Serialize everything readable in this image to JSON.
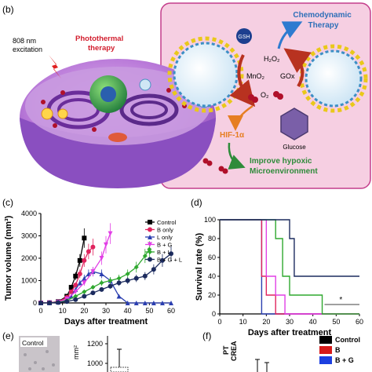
{
  "panel_b": {
    "label": "(b)",
    "laser": "808 nm\nexcitation",
    "photothermal": "Photothermal\ntherapy",
    "chemodynamic": "Chemodynamic\nTherapy",
    "gsh": "GSH",
    "h2o2": "H₂O₂",
    "mno2": "MnO₂",
    "gox": "GOx",
    "o2": "O₂",
    "glucose": "Glucose",
    "hif": "HIF-1α",
    "improve": "Improve hypoxic\nMicroenvironment",
    "colors": {
      "pink_bg": "#f6cfe2",
      "cell": "#a86bd0",
      "red_arrow": "#c0392b",
      "green_text": "#2e8b3a",
      "blue_text": "#2e6fb8",
      "orange_text": "#e67e22"
    }
  },
  "panel_c": {
    "label": "(c)"
  },
  "panel_d": {
    "label": "(d)"
  },
  "panel_e": {
    "label": "(e)",
    "inset_label": "Control",
    "ylabel_fragment": "mm²"
  },
  "panel_f": {
    "label": "(f)",
    "ylabel_fragment": "PT\nCREA",
    "legend": [
      "Control",
      "B",
      "B + G"
    ]
  },
  "chart_data": [
    {
      "type": "line",
      "panel": "c",
      "xlabel": "Days after treatment",
      "ylabel": "Tumor volume (mm³)",
      "xlim": [
        0,
        60
      ],
      "ylim": [
        0,
        4000
      ],
      "xticks": [
        0,
        10,
        20,
        30,
        40,
        50,
        60
      ],
      "yticks": [
        0,
        1000,
        2000,
        3000,
        4000
      ],
      "legend_position": "top-right",
      "series": [
        {
          "name": "Control",
          "color": "#000000",
          "marker": "square",
          "x": [
            0,
            4,
            8,
            12,
            14,
            16,
            18,
            20
          ],
          "y": [
            0,
            10,
            60,
            300,
            700,
            1200,
            1900,
            2900
          ]
        },
        {
          "name": "B only",
          "color": "#e0245e",
          "marker": "circle",
          "x": [
            0,
            4,
            8,
            12,
            14,
            16,
            18,
            20,
            22,
            24
          ],
          "y": [
            0,
            10,
            50,
            250,
            500,
            800,
            1300,
            1900,
            2300,
            2500
          ]
        },
        {
          "name": "L only",
          "color": "#2b3fb0",
          "marker": "triangle",
          "x": [
            0,
            4,
            8,
            12,
            14,
            16,
            18,
            20,
            22,
            24,
            28,
            32,
            36,
            40,
            44,
            48,
            52,
            56,
            60
          ],
          "y": [
            0,
            5,
            30,
            150,
            300,
            600,
            900,
            1100,
            1300,
            1400,
            1300,
            1000,
            300,
            0,
            0,
            0,
            0,
            0,
            0
          ]
        },
        {
          "name": "B + G",
          "color": "#e23fe6",
          "marker": "triangle-down",
          "x": [
            0,
            4,
            8,
            12,
            16,
            20,
            24,
            28,
            30,
            32
          ],
          "y": [
            0,
            10,
            40,
            180,
            500,
            900,
            1400,
            2000,
            2600,
            3100
          ]
        },
        {
          "name": "B + L",
          "color": "#2fa82f",
          "marker": "diamond",
          "x": [
            0,
            4,
            8,
            12,
            16,
            20,
            24,
            28,
            32,
            36,
            40,
            44,
            48,
            50
          ],
          "y": [
            0,
            5,
            30,
            100,
            300,
            500,
            700,
            900,
            1000,
            1100,
            1300,
            1600,
            2100,
            2400
          ]
        },
        {
          "name": "B + G + L",
          "color": "#1c2b5e",
          "marker": "circle",
          "x": [
            0,
            4,
            8,
            12,
            16,
            20,
            24,
            28,
            32,
            36,
            40,
            44,
            48,
            52,
            56,
            60
          ],
          "y": [
            0,
            5,
            20,
            60,
            150,
            300,
            450,
            600,
            750,
            900,
            1000,
            1100,
            1200,
            1500,
            1900,
            2200
          ]
        }
      ]
    },
    {
      "type": "line",
      "panel": "d",
      "step": true,
      "xlabel": "Days after treatment",
      "ylabel": "Survival rate (%)",
      "xlim": [
        0,
        60
      ],
      "ylim": [
        0,
        100
      ],
      "xticks": [
        0,
        10,
        20,
        30,
        40,
        50,
        60
      ],
      "yticks": [
        0,
        20,
        40,
        60,
        80,
        100
      ],
      "annotation": "*",
      "series": [
        {
          "color": "#2b3fb0",
          "x": [
            0,
            18,
            18,
            60
          ],
          "y": [
            100,
            100,
            0,
            0
          ]
        },
        {
          "color": "#e0245e",
          "x": [
            0,
            18,
            18,
            20,
            20,
            24,
            24,
            60
          ],
          "y": [
            100,
            100,
            40,
            40,
            20,
            20,
            0,
            0
          ]
        },
        {
          "color": "#e23fe6",
          "x": [
            0,
            20,
            20,
            24,
            24,
            28,
            28,
            60
          ],
          "y": [
            100,
            100,
            40,
            40,
            20,
            20,
            0,
            0
          ]
        },
        {
          "color": "#2fa82f",
          "x": [
            0,
            24,
            24,
            27,
            27,
            30,
            30,
            44,
            44,
            60
          ],
          "y": [
            100,
            100,
            80,
            80,
            40,
            40,
            20,
            20,
            0,
            0
          ]
        },
        {
          "color": "#1c2b5e",
          "x": [
            0,
            30,
            30,
            32,
            32,
            36,
            36,
            60
          ],
          "y": [
            100,
            100,
            80,
            80,
            40,
            40,
            40,
            40
          ]
        }
      ]
    },
    {
      "type": "bar",
      "panel": "e",
      "yticks": [
        1000,
        1200
      ],
      "ylim": [
        900,
        1300
      ]
    }
  ]
}
